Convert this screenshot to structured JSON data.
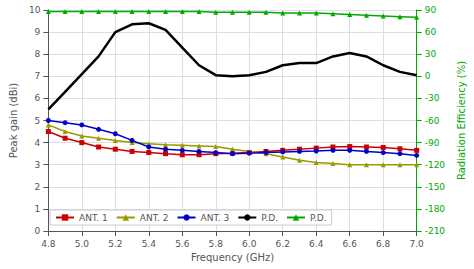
{
  "chart_data": {
    "type": "line",
    "x_label": "Frequency (GHz)",
    "y_label": "Peak gain (dBi)",
    "y2_label": "Radiation Efficiency (%)",
    "x": [
      4.8,
      4.9,
      5.0,
      5.1,
      5.2,
      5.3,
      5.4,
      5.5,
      5.6,
      5.7,
      5.8,
      5.9,
      6.0,
      6.1,
      6.2,
      6.3,
      6.4,
      6.5,
      6.6,
      6.7,
      6.8,
      6.9,
      7.0
    ],
    "series": [
      {
        "name": "ANT. 1",
        "color": "#cc0000",
        "marker": "square",
        "values": [
          4.5,
          4.2,
          4.0,
          3.8,
          3.7,
          3.6,
          3.55,
          3.5,
          3.45,
          3.45,
          3.5,
          3.52,
          3.55,
          3.6,
          3.65,
          3.7,
          3.75,
          3.8,
          3.82,
          3.8,
          3.78,
          3.72,
          3.65
        ]
      },
      {
        "name": "ANT. 2",
        "color": "#999900",
        "marker": "triangle",
        "values": [
          4.8,
          4.5,
          4.3,
          4.2,
          4.1,
          4.0,
          3.95,
          3.9,
          3.88,
          3.85,
          3.82,
          3.7,
          3.6,
          3.5,
          3.35,
          3.2,
          3.1,
          3.05,
          3.0,
          3.0,
          3.0,
          3.0,
          3.0
        ]
      },
      {
        "name": "ANT. 3",
        "color": "#0000cc",
        "marker": "circle",
        "values": [
          5.0,
          4.9,
          4.8,
          4.6,
          4.4,
          4.1,
          3.8,
          3.7,
          3.65,
          3.6,
          3.55,
          3.5,
          3.52,
          3.55,
          3.58,
          3.6,
          3.62,
          3.65,
          3.65,
          3.6,
          3.55,
          3.5,
          3.42
        ]
      },
      {
        "name": "P.D.",
        "color": "#000000",
        "values": [
          5.5,
          6.3,
          7.1,
          7.9,
          9.0,
          9.35,
          9.4,
          9.1,
          8.3,
          7.5,
          7.05,
          7.0,
          7.05,
          7.2,
          7.5,
          7.6,
          7.6,
          7.9,
          8.05,
          7.9,
          7.5,
          7.2,
          7.05
        ]
      },
      {
        "name": "P.D.",
        "color": "#00aa00",
        "marker": "triangle",
        "axis": "y2",
        "values": [
          88,
          88,
          88,
          88,
          88,
          88,
          88,
          88,
          88,
          88,
          87,
          87,
          87,
          87,
          86,
          86,
          86,
          85,
          84,
          83,
          82,
          81,
          80
        ]
      }
    ],
    "xlim": [
      4.8,
      7.0
    ],
    "xticks": [
      4.8,
      {
        "value": 5,
        "label": "5.0"
      },
      5.2,
      5.4,
      5.6,
      5.8,
      {
        "value": 6,
        "label": "6.0"
      },
      6.2,
      6.4,
      6.6,
      6.8,
      {
        "value": 7,
        "label": "7.0"
      }
    ],
    "ylim": [
      0,
      10
    ],
    "yticks": [
      0,
      1,
      2,
      3,
      4,
      5,
      6,
      7,
      8,
      9,
      10
    ],
    "y2lim": [
      -210,
      90
    ],
    "y2ticks": [
      90,
      60,
      30,
      0,
      -30,
      -60,
      -90,
      -120,
      -150,
      -180,
      -210
    ],
    "grid": true,
    "legend": "lower left"
  }
}
